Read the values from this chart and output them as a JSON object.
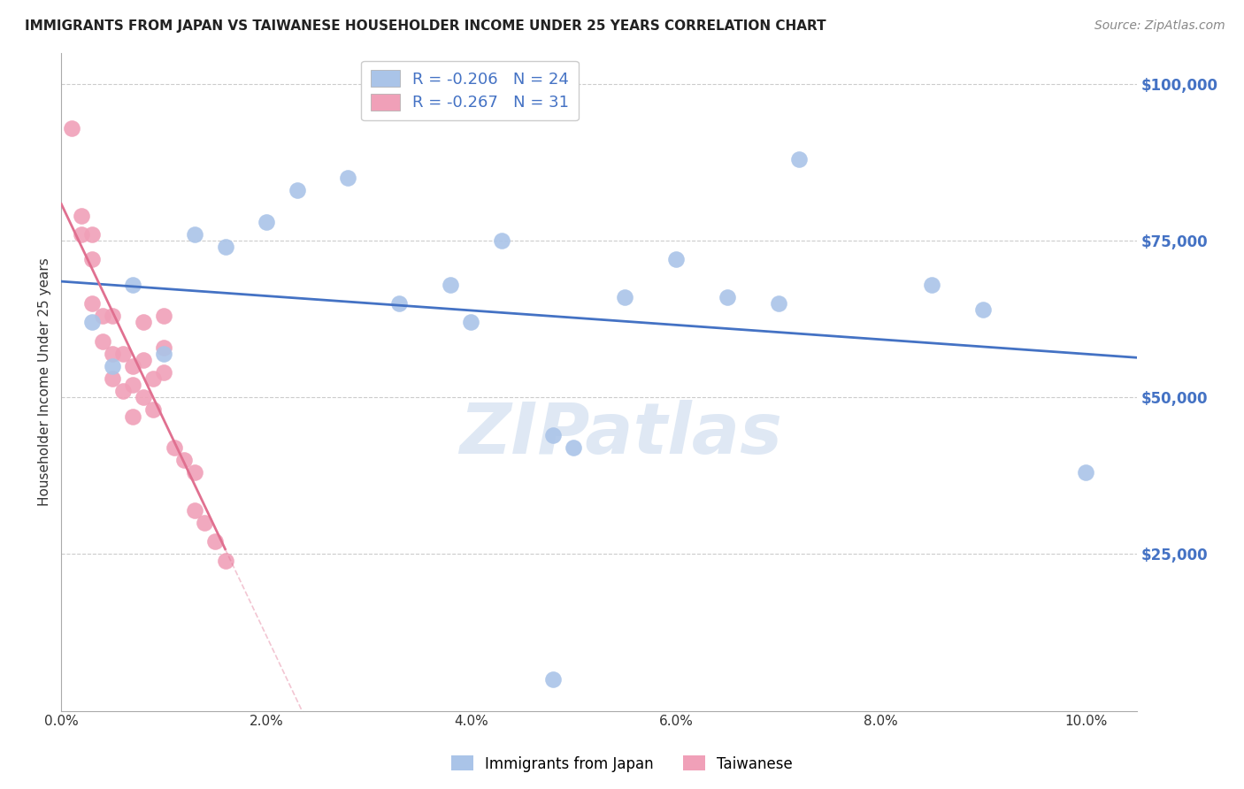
{
  "title": "IMMIGRANTS FROM JAPAN VS TAIWANESE HOUSEHOLDER INCOME UNDER 25 YEARS CORRELATION CHART",
  "source": "Source: ZipAtlas.com",
  "ylabel": "Householder Income Under 25 years",
  "xmin": 0.0,
  "xmax": 0.105,
  "ymin": 0,
  "ymax": 105000,
  "ytop_grid": 100000,
  "xtick_labels": [
    "0.0%",
    "2.0%",
    "4.0%",
    "6.0%",
    "8.0%",
    "10.0%"
  ],
  "xtick_values": [
    0.0,
    0.02,
    0.04,
    0.06,
    0.08,
    0.1
  ],
  "ytick_labels": [
    "$25,000",
    "$50,000",
    "$75,000",
    "$100,000"
  ],
  "ytick_values": [
    25000,
    50000,
    75000,
    100000
  ],
  "legend1_label": "Immigrants from Japan",
  "legend2_label": "Taiwanese",
  "R1": -0.206,
  "N1": 24,
  "R2": -0.267,
  "N2": 31,
  "color_japan": "#aac4e8",
  "color_taiwan": "#f0a0b8",
  "color_japan_line": "#4472c4",
  "color_taiwan_line": "#e07090",
  "color_text_blue": "#4472c4",
  "japan_scatter_x": [
    0.003,
    0.007,
    0.01,
    0.013,
    0.016,
    0.02,
    0.023,
    0.028,
    0.033,
    0.038,
    0.04,
    0.043,
    0.048,
    0.05,
    0.055,
    0.06,
    0.065,
    0.07,
    0.072,
    0.085,
    0.09,
    0.1,
    0.048,
    0.005
  ],
  "japan_scatter_y": [
    62000,
    68000,
    57000,
    76000,
    74000,
    78000,
    83000,
    85000,
    65000,
    68000,
    62000,
    75000,
    44000,
    42000,
    66000,
    72000,
    66000,
    65000,
    88000,
    68000,
    64000,
    38000,
    5000,
    55000
  ],
  "taiwan_scatter_x": [
    0.001,
    0.002,
    0.003,
    0.003,
    0.004,
    0.004,
    0.005,
    0.005,
    0.005,
    0.006,
    0.006,
    0.007,
    0.007,
    0.007,
    0.008,
    0.008,
    0.008,
    0.009,
    0.009,
    0.01,
    0.01,
    0.01,
    0.011,
    0.012,
    0.013,
    0.013,
    0.014,
    0.015,
    0.016,
    0.002,
    0.003
  ],
  "taiwan_scatter_y": [
    93000,
    79000,
    76000,
    72000,
    63000,
    59000,
    63000,
    57000,
    53000,
    57000,
    51000,
    55000,
    52000,
    47000,
    50000,
    62000,
    56000,
    53000,
    48000,
    63000,
    58000,
    54000,
    42000,
    40000,
    38000,
    32000,
    30000,
    27000,
    24000,
    76000,
    65000
  ],
  "watermark_text": "ZIPatlas",
  "background_color": "#ffffff",
  "grid_color": "#cccccc",
  "title_fontsize": 11,
  "source_fontsize": 10,
  "legend_fontsize": 13,
  "scatter_size": 180,
  "japan_line_start_x": 0.0,
  "japan_line_end_x": 0.105,
  "taiwan_line_solid_end_x": 0.016,
  "taiwan_line_dash_end_x": 0.105
}
